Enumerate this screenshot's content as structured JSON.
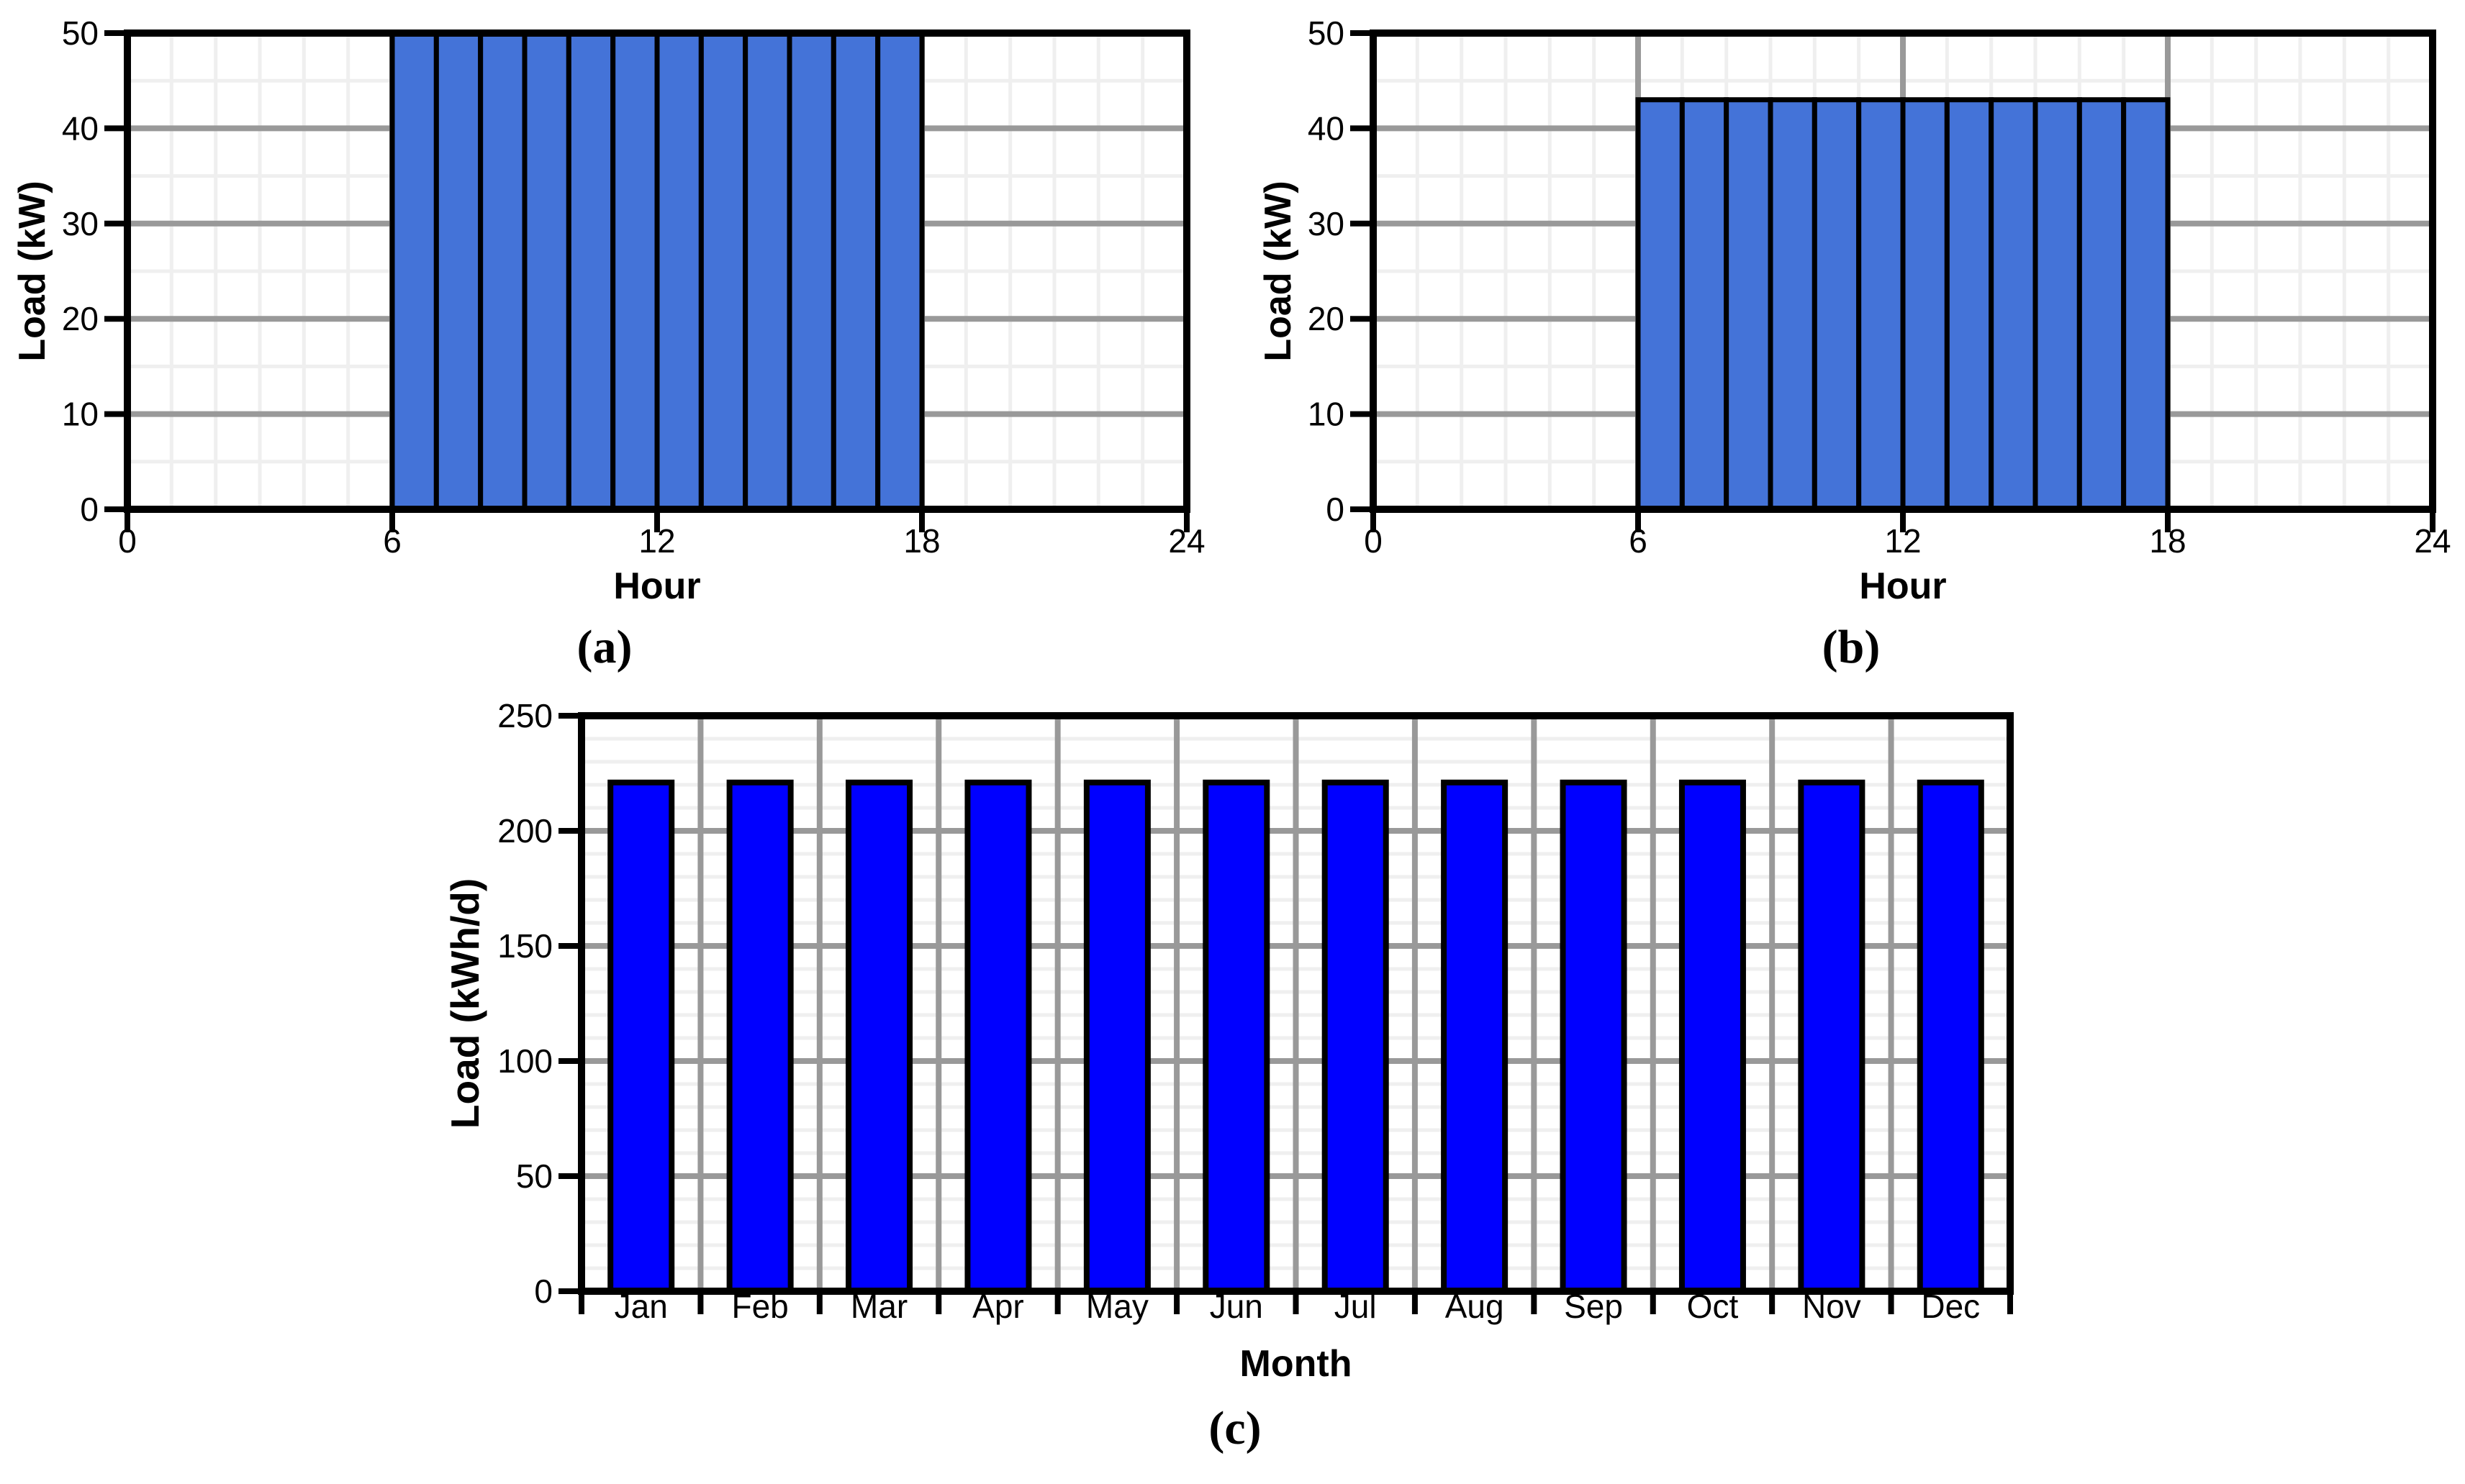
{
  "figure": {
    "background": "#FFFFFF",
    "text_color": "#000000",
    "axis_color": "#000000",
    "grid_major_color": "#999999",
    "grid_minor_color": "#EFEFEF"
  },
  "chart_data": [
    {
      "id": "a",
      "type": "bar",
      "caption": "(a)",
      "xlabel": "Hour",
      "ylabel": "Load (kW)",
      "x_range": [
        0,
        24
      ],
      "x_ticks": [
        0,
        6,
        12,
        18,
        24
      ],
      "x_minor_step": 1,
      "y_range": [
        0,
        50
      ],
      "y_ticks": [
        0,
        10,
        20,
        30,
        40,
        50
      ],
      "y_minor_step": 5,
      "bars": {
        "start_hour": 6,
        "end_hour": 18,
        "hourly_value_kw": 50
      },
      "bar_color": "#4473D8",
      "bar_outline": "#000000",
      "grid": "on",
      "legend": "none"
    },
    {
      "id": "b",
      "type": "bar",
      "caption": "(b)",
      "xlabel": "Hour",
      "ylabel": "Load (kW)",
      "x_range": [
        0,
        24
      ],
      "x_ticks": [
        0,
        6,
        12,
        18,
        24
      ],
      "x_minor_step": 1,
      "y_range": [
        0,
        50
      ],
      "y_ticks": [
        0,
        10,
        20,
        30,
        40,
        50
      ],
      "y_minor_step": 5,
      "bars": {
        "start_hour": 6,
        "end_hour": 18,
        "hourly_value_kw": 43
      },
      "bar_color": "#4473D8",
      "bar_outline": "#000000",
      "grid": "on",
      "legend": "none"
    },
    {
      "id": "c",
      "type": "bar",
      "caption": "(c)",
      "xlabel": "Month",
      "ylabel": "Load (kWh/d)",
      "categories": [
        "Jan",
        "Feb",
        "Mar",
        "Apr",
        "May",
        "Jun",
        "Jul",
        "Aug",
        "Sep",
        "Oct",
        "Nov",
        "Dec"
      ],
      "values": [
        221,
        221,
        221,
        221,
        221,
        221,
        221,
        221,
        221,
        221,
        221,
        221
      ],
      "y_range": [
        0,
        250
      ],
      "y_ticks": [
        0,
        50,
        100,
        150,
        200,
        250
      ],
      "y_minor_step": 10,
      "bar_color": "#0000FF",
      "bar_outline": "#000000",
      "grid": "on",
      "legend": "none"
    }
  ]
}
